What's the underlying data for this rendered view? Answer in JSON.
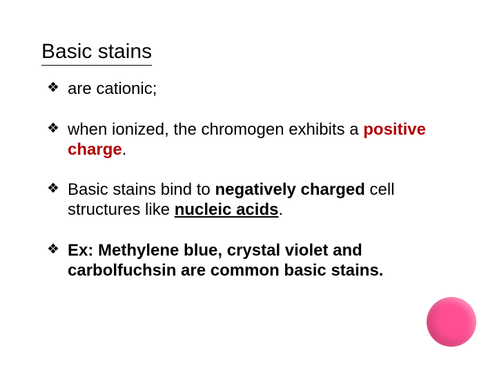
{
  "title": "Basic stains",
  "bullets": {
    "b1": "are cationic;",
    "b2_pre": "when ionized, the chromogen exhibits a ",
    "b2_red": "positive charge",
    "b2_post": ".",
    "b3_pre": "Basic stains bind to ",
    "b3_bold1": "negatively charged",
    "b3_mid": " cell structures like ",
    "b3_bold2": "nucleic acids",
    "b3_post": ".",
    "b4": "Ex: Methylene blue, crystal violet and carbolfuchsin are common basic stains."
  },
  "accent_color": "#ff4f93"
}
